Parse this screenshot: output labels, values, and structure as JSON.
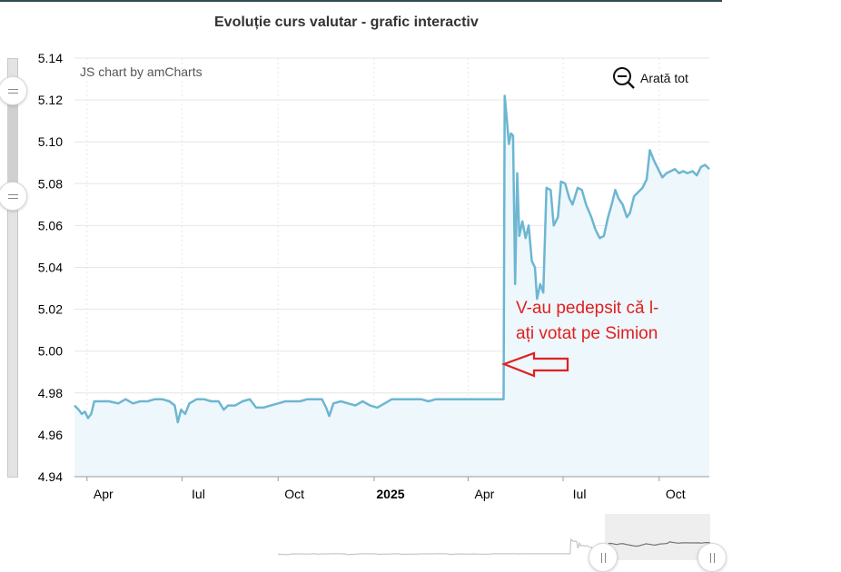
{
  "title": "Evoluție curs valutar - grafic interactiv",
  "credit": "JS chart by amCharts",
  "zoom_out_label": "Arată tot",
  "annotation": {
    "line1": "V-au pedepsit că l-",
    "line2": "ați votat pe Simion",
    "color": "#e02020"
  },
  "colors": {
    "line": "#6db6d2",
    "fill": "#eef7fb",
    "grid": "#e6e6e6",
    "arrow": "#e02020"
  },
  "chart_data": {
    "type": "area",
    "ylim": [
      4.94,
      5.14
    ],
    "yticks": [
      "4.94",
      "4.96",
      "4.98",
      "5.00",
      "5.02",
      "5.04",
      "5.06",
      "5.08",
      "5.10",
      "5.12",
      "5.14"
    ],
    "xlim": [
      "2024-03-20",
      "2025-11-18"
    ],
    "xticks": [
      {
        "date": "2024-04-01",
        "label": "Apr",
        "bold": false
      },
      {
        "date": "2024-07-01",
        "label": "Iul",
        "bold": false
      },
      {
        "date": "2024-10-01",
        "label": "Oct",
        "bold": false
      },
      {
        "date": "2025-01-01",
        "label": "2025",
        "bold": true
      },
      {
        "date": "2025-04-01",
        "label": "Apr",
        "bold": false
      },
      {
        "date": "2025-07-01",
        "label": "Iul",
        "bold": false
      },
      {
        "date": "2025-10-01",
        "label": "Oct",
        "bold": false
      }
    ],
    "series": [
      {
        "points": [
          [
            "2024-03-20",
            4.974
          ],
          [
            "2024-03-24",
            4.972
          ],
          [
            "2024-03-27",
            4.97
          ],
          [
            "2024-03-30",
            4.971
          ],
          [
            "2024-04-02",
            4.968
          ],
          [
            "2024-04-05",
            4.97
          ],
          [
            "2024-04-08",
            4.976
          ],
          [
            "2024-04-15",
            4.976
          ],
          [
            "2024-04-22",
            4.976
          ],
          [
            "2024-05-01",
            4.975
          ],
          [
            "2024-05-08",
            4.977
          ],
          [
            "2024-05-15",
            4.975
          ],
          [
            "2024-05-22",
            4.976
          ],
          [
            "2024-05-29",
            4.976
          ],
          [
            "2024-06-05",
            4.977
          ],
          [
            "2024-06-12",
            4.977
          ],
          [
            "2024-06-19",
            4.976
          ],
          [
            "2024-06-24",
            4.974
          ],
          [
            "2024-06-27",
            4.966
          ],
          [
            "2024-06-30",
            4.972
          ],
          [
            "2024-07-04",
            4.97
          ],
          [
            "2024-07-08",
            4.975
          ],
          [
            "2024-07-15",
            4.977
          ],
          [
            "2024-07-22",
            4.977
          ],
          [
            "2024-07-29",
            4.976
          ],
          [
            "2024-08-05",
            4.976
          ],
          [
            "2024-08-10",
            4.972
          ],
          [
            "2024-08-14",
            4.974
          ],
          [
            "2024-08-21",
            4.974
          ],
          [
            "2024-08-28",
            4.976
          ],
          [
            "2024-09-04",
            4.977
          ],
          [
            "2024-09-10",
            4.973
          ],
          [
            "2024-09-17",
            4.973
          ],
          [
            "2024-09-24",
            4.974
          ],
          [
            "2024-10-01",
            4.975
          ],
          [
            "2024-10-08",
            4.976
          ],
          [
            "2024-10-15",
            4.976
          ],
          [
            "2024-10-22",
            4.976
          ],
          [
            "2024-10-29",
            4.977
          ],
          [
            "2024-11-05",
            4.977
          ],
          [
            "2024-11-12",
            4.977
          ],
          [
            "2024-11-16",
            4.973
          ],
          [
            "2024-11-19",
            4.969
          ],
          [
            "2024-11-23",
            4.975
          ],
          [
            "2024-11-30",
            4.976
          ],
          [
            "2024-12-07",
            4.975
          ],
          [
            "2024-12-14",
            4.974
          ],
          [
            "2024-12-21",
            4.976
          ],
          [
            "2024-12-28",
            4.974
          ],
          [
            "2025-01-04",
            4.973
          ],
          [
            "2025-01-11",
            4.975
          ],
          [
            "2025-01-18",
            4.977
          ],
          [
            "2025-01-25",
            4.977
          ],
          [
            "2025-02-01",
            4.977
          ],
          [
            "2025-02-08",
            4.977
          ],
          [
            "2025-02-15",
            4.977
          ],
          [
            "2025-02-22",
            4.976
          ],
          [
            "2025-03-01",
            4.977
          ],
          [
            "2025-03-08",
            4.977
          ],
          [
            "2025-03-15",
            4.977
          ],
          [
            "2025-03-22",
            4.977
          ],
          [
            "2025-03-29",
            4.977
          ],
          [
            "2025-04-05",
            4.977
          ],
          [
            "2025-04-12",
            4.977
          ],
          [
            "2025-04-19",
            4.977
          ],
          [
            "2025-04-30",
            4.977
          ],
          [
            "2025-05-05",
            4.977
          ],
          [
            "2025-05-06",
            5.122
          ],
          [
            "2025-05-08",
            5.111
          ],
          [
            "2025-05-10",
            5.099
          ],
          [
            "2025-05-12",
            5.104
          ],
          [
            "2025-05-14",
            5.103
          ],
          [
            "2025-05-16",
            5.032
          ],
          [
            "2025-05-18",
            5.085
          ],
          [
            "2025-05-20",
            5.055
          ],
          [
            "2025-05-23",
            5.062
          ],
          [
            "2025-05-26",
            5.054
          ],
          [
            "2025-05-29",
            5.06
          ],
          [
            "2025-06-01",
            5.043
          ],
          [
            "2025-06-04",
            5.04
          ],
          [
            "2025-06-06",
            5.025
          ],
          [
            "2025-06-09",
            5.032
          ],
          [
            "2025-06-12",
            5.028
          ],
          [
            "2025-06-15",
            5.078
          ],
          [
            "2025-06-19",
            5.077
          ],
          [
            "2025-06-22",
            5.06
          ],
          [
            "2025-06-26",
            5.064
          ],
          [
            "2025-06-29",
            5.081
          ],
          [
            "2025-07-03",
            5.08
          ],
          [
            "2025-07-07",
            5.073
          ],
          [
            "2025-07-10",
            5.07
          ],
          [
            "2025-07-15",
            5.078
          ],
          [
            "2025-07-19",
            5.077
          ],
          [
            "2025-07-23",
            5.07
          ],
          [
            "2025-07-28",
            5.064
          ],
          [
            "2025-08-01",
            5.058
          ],
          [
            "2025-08-05",
            5.054
          ],
          [
            "2025-08-09",
            5.055
          ],
          [
            "2025-08-13",
            5.064
          ],
          [
            "2025-08-17",
            5.071
          ],
          [
            "2025-08-20",
            5.077
          ],
          [
            "2025-08-23",
            5.073
          ],
          [
            "2025-08-27",
            5.07
          ],
          [
            "2025-08-31",
            5.064
          ],
          [
            "2025-09-03",
            5.066
          ],
          [
            "2025-09-07",
            5.074
          ],
          [
            "2025-09-11",
            5.076
          ],
          [
            "2025-09-15",
            5.078
          ],
          [
            "2025-09-19",
            5.082
          ],
          [
            "2025-09-22",
            5.096
          ],
          [
            "2025-09-26",
            5.091
          ],
          [
            "2025-09-30",
            5.087
          ],
          [
            "2025-10-04",
            5.083
          ],
          [
            "2025-10-08",
            5.085
          ],
          [
            "2025-10-12",
            5.086
          ],
          [
            "2025-10-16",
            5.087
          ],
          [
            "2025-10-20",
            5.085
          ],
          [
            "2025-10-24",
            5.086
          ],
          [
            "2025-10-28",
            5.085
          ],
          [
            "2025-11-02",
            5.086
          ],
          [
            "2025-11-06",
            5.084
          ],
          [
            "2025-11-10",
            5.088
          ],
          [
            "2025-11-14",
            5.089
          ],
          [
            "2025-11-18",
            5.087
          ]
        ]
      }
    ],
    "grid": true
  }
}
